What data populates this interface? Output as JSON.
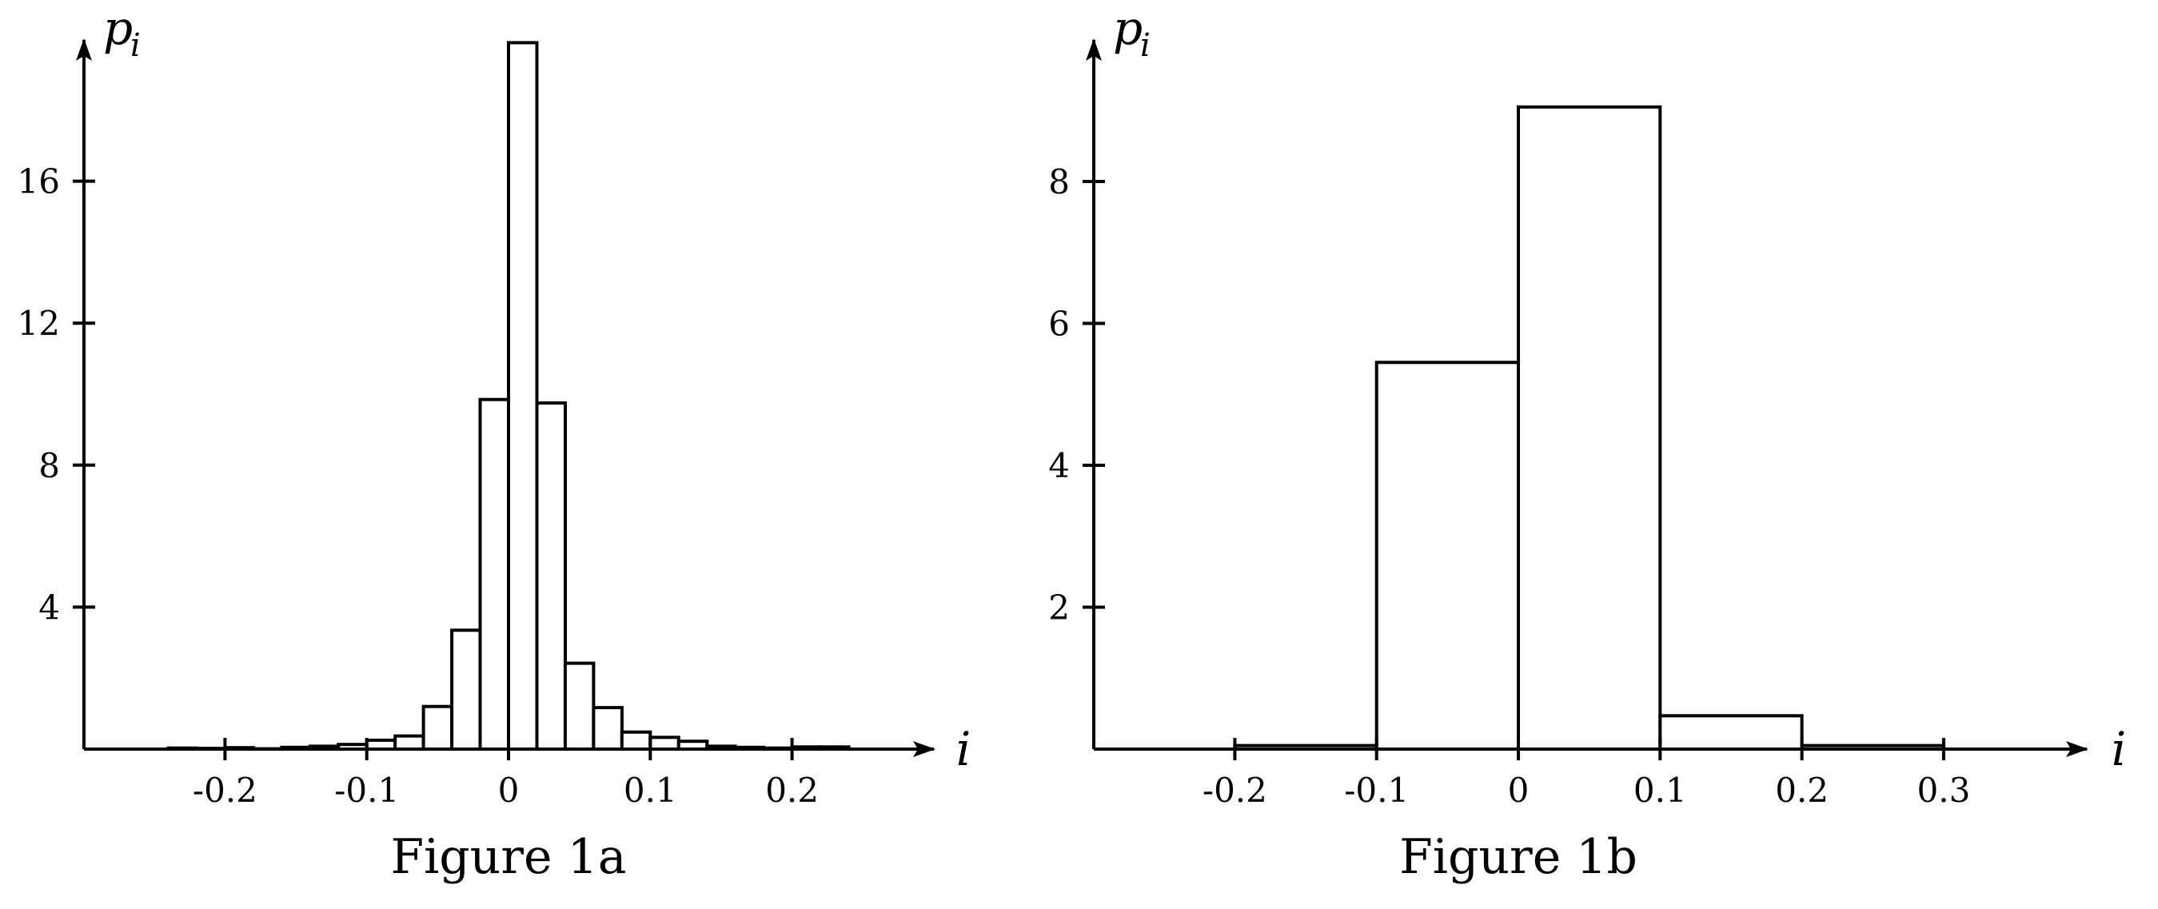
{
  "chart_data": [
    {
      "type": "bar",
      "title": "Figure 1a",
      "xlabel": "i",
      "ylabel": "p",
      "ylabel_subscript": "i",
      "bin_width": 0.02,
      "xlim": [
        -0.3,
        0.3
      ],
      "ylim": [
        0,
        20
      ],
      "xticks": [
        -0.2,
        -0.1,
        0,
        0.1,
        0.2
      ],
      "xtick_labels": [
        "-0.2",
        "-0.1",
        "0",
        "0.1",
        "0.2"
      ],
      "yticks": [
        4,
        8,
        12,
        16
      ],
      "ytick_labels": [
        "4",
        "8",
        "12",
        "16"
      ],
      "bins": [
        {
          "x0": -0.24,
          "value": 0.03
        },
        {
          "x0": -0.22,
          "value": 0.02
        },
        {
          "x0": -0.2,
          "value": 0.04
        },
        {
          "x0": -0.18,
          "value": 0.01
        },
        {
          "x0": -0.16,
          "value": 0.05
        },
        {
          "x0": -0.14,
          "value": 0.08
        },
        {
          "x0": -0.12,
          "value": 0.13
        },
        {
          "x0": -0.1,
          "value": 0.25
        },
        {
          "x0": -0.08,
          "value": 0.37
        },
        {
          "x0": -0.06,
          "value": 1.2
        },
        {
          "x0": -0.04,
          "value": 3.35
        },
        {
          "x0": -0.02,
          "value": 9.85
        },
        {
          "x0": 0.0,
          "value": 19.9
        },
        {
          "x0": 0.02,
          "value": 9.75
        },
        {
          "x0": 0.04,
          "value": 2.42
        },
        {
          "x0": 0.06,
          "value": 1.17
        },
        {
          "x0": 0.08,
          "value": 0.48
        },
        {
          "x0": 0.1,
          "value": 0.33
        },
        {
          "x0": 0.12,
          "value": 0.22
        },
        {
          "x0": 0.14,
          "value": 0.08
        },
        {
          "x0": 0.16,
          "value": 0.05
        },
        {
          "x0": 0.18,
          "value": 0.03
        },
        {
          "x0": 0.2,
          "value": 0.06
        },
        {
          "x0": 0.22,
          "value": 0.06
        }
      ],
      "grid": false,
      "legend": "none"
    },
    {
      "type": "bar",
      "title": "Figure 1b",
      "xlabel": "i",
      "ylabel": "p",
      "ylabel_subscript": "i",
      "bin_width": 0.1,
      "xlim": [
        -0.3,
        0.4
      ],
      "ylim": [
        0,
        10
      ],
      "xticks": [
        -0.2,
        -0.1,
        0,
        0.1,
        0.2,
        0.3
      ],
      "xtick_labels": [
        "-0.2",
        "-0.1",
        "0",
        "0.1",
        "0.2",
        "0.3"
      ],
      "yticks": [
        2,
        4,
        6,
        8
      ],
      "ytick_labels": [
        "2",
        "4",
        "6",
        "8"
      ],
      "bins": [
        {
          "x0": -0.2,
          "value": 0.05
        },
        {
          "x0": -0.1,
          "value": 5.45
        },
        {
          "x0": 0.0,
          "value": 9.05
        },
        {
          "x0": 0.1,
          "value": 0.47
        },
        {
          "x0": 0.2,
          "value": 0.05
        }
      ],
      "grid": false,
      "legend": "none"
    }
  ]
}
